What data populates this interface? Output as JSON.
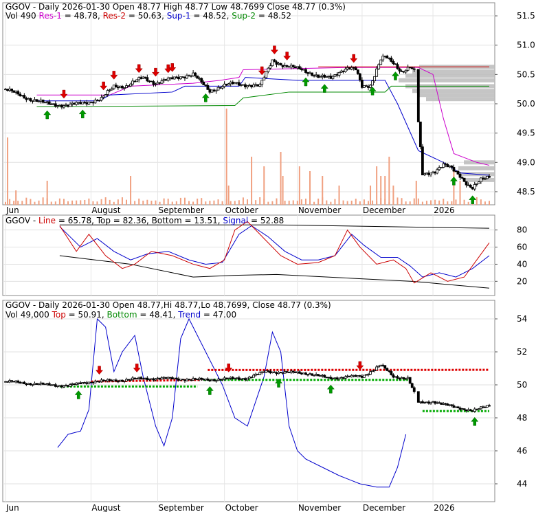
{
  "chart_data": [
    {
      "type": "candlestick",
      "panel": "price",
      "header": {
        "ticker": "GGOV",
        "sep1": " - ",
        "period": "Daily",
        "date": "2026-01-30",
        "open_label": "Open",
        "open": "48.77",
        "high_label": "High",
        "high": "48.77",
        "low_label": "Low",
        "low": "48.7699",
        "close_label": "Close",
        "close": "48.77",
        "change": "(0.3%)"
      },
      "subheader": {
        "vol_label": "Vol",
        "vol": "490",
        "res1_label": "Res-1",
        "res1": "48.78",
        "res2_label": "Res-2",
        "res2": "50.63",
        "sup1_label": "Sup-1",
        "sup1": "48.52",
        "sup2_label": "Sup-2",
        "sup2": "48.52"
      },
      "y_ticks": [
        "51.5",
        "51.0",
        "50.5",
        "50.0",
        "49.5",
        "49.0",
        "48.5"
      ],
      "ylim": [
        48.3,
        51.7
      ],
      "close_path": [
        [
          0,
          50.25
        ],
        [
          10,
          50.1
        ],
        [
          20,
          50.0
        ],
        [
          30,
          49.97
        ],
        [
          38,
          50.02
        ],
        [
          46,
          50.08
        ],
        [
          52,
          50.3
        ],
        [
          58,
          50.3
        ],
        [
          66,
          50.45
        ],
        [
          72,
          50.35
        ],
        [
          82,
          50.45
        ],
        [
          90,
          50.5
        ],
        [
          98,
          50.22
        ],
        [
          104,
          50.3
        ],
        [
          110,
          50.35
        ],
        [
          116,
          50.32
        ],
        [
          122,
          50.3
        ],
        [
          128,
          50.75
        ],
        [
          134,
          50.63
        ],
        [
          142,
          50.6
        ],
        [
          150,
          50.45
        ],
        [
          156,
          50.45
        ],
        [
          160,
          50.55
        ],
        [
          164,
          50.6
        ],
        [
          168,
          50.58
        ],
        [
          171,
          50.3
        ],
        [
          175,
          50.32
        ],
        [
          180,
          50.75
        ],
        [
          182,
          50.8
        ],
        [
          186,
          50.7
        ],
        [
          190,
          50.55
        ],
        [
          194,
          50.62
        ],
        [
          196,
          50.55
        ],
        [
          200,
          48.8
        ],
        [
          206,
          48.85
        ],
        [
          210,
          48.95
        ],
        [
          214,
          48.9
        ],
        [
          218,
          48.78
        ],
        [
          222,
          48.6
        ],
        [
          224,
          48.55
        ],
        [
          228,
          48.7
        ],
        [
          232,
          48.77
        ]
      ],
      "lines": [
        {
          "color": "#cc00cc",
          "path": [
            [
              15,
              50.15
            ],
            [
              50,
              50.15
            ],
            [
              60,
              50.3
            ],
            [
              90,
              50.35
            ],
            [
              103,
              50.4
            ],
            [
              112,
              50.45
            ],
            [
              114,
              50.58
            ],
            [
              165,
              50.62
            ],
            [
              198,
              50.62
            ],
            [
              205,
              50.5
            ],
            [
              210,
              49.75
            ],
            [
              215,
              49.15
            ],
            [
              226,
              49.0
            ],
            [
              232,
              48.95
            ]
          ]
        },
        {
          "color": "#0000cc",
          "path": [
            [
              15,
              50.05
            ],
            [
              45,
              50.05
            ],
            [
              50,
              50.15
            ],
            [
              80,
              50.2
            ],
            [
              86,
              50.3
            ],
            [
              112,
              50.3
            ],
            [
              115,
              50.45
            ],
            [
              140,
              50.4
            ],
            [
              182,
              50.4
            ],
            [
              188,
              50.0
            ],
            [
              193,
              49.6
            ],
            [
              198,
              49.2
            ],
            [
              210,
              49.0
            ],
            [
              218,
              48.82
            ],
            [
              232,
              48.78
            ]
          ]
        },
        {
          "color": "#008800",
          "path": [
            [
              15,
              49.95
            ],
            [
              110,
              49.97
            ],
            [
              114,
              50.1
            ],
            [
              136,
              50.2
            ],
            [
              182,
              50.2
            ],
            [
              185,
              50.3
            ],
            [
              232,
              50.3
            ]
          ]
        }
      ],
      "resistance_level": 50.63,
      "resistance_x": [
        150,
        232
      ],
      "volume_profile_levels": [
        50.63,
        50.55,
        50.48,
        50.4,
        50.3,
        50.22,
        50.15,
        50.08,
        49.0,
        48.9,
        48.8,
        48.7
      ],
      "up_arrows_x": [
        20,
        37,
        96,
        144,
        153,
        176,
        187,
        215,
        224
      ],
      "down_arrows_x": [
        28,
        47,
        52,
        64,
        72,
        78,
        80,
        123,
        129,
        135,
        167
      ],
      "volume_bars": [
        [
          1,
          0.7
        ],
        [
          5,
          0.15
        ],
        [
          20,
          0.25
        ],
        [
          60,
          0.3
        ],
        [
          106,
          1.0
        ],
        [
          107,
          0.2
        ],
        [
          118,
          0.5
        ],
        [
          124,
          0.4
        ],
        [
          132,
          0.55
        ],
        [
          133,
          0.3
        ],
        [
          141,
          0.4
        ],
        [
          146,
          0.35
        ],
        [
          152,
          0.3
        ],
        [
          160,
          0.2
        ],
        [
          175,
          0.2
        ],
        [
          178,
          0.4
        ],
        [
          180,
          0.3
        ],
        [
          182,
          0.3
        ],
        [
          184,
          0.5
        ],
        [
          186,
          0.2
        ],
        [
          197,
          0.25
        ],
        [
          215,
          0.35
        ],
        [
          218,
          0.25
        ]
      ],
      "x_labels": [
        {
          "text": "Jun",
          "i": 0
        },
        {
          "text": "August",
          "i": 41
        },
        {
          "text": "September",
          "i": 73
        },
        {
          "text": "October",
          "i": 105
        },
        {
          "text": "November",
          "i": 140
        },
        {
          "text": "December",
          "i": 171
        },
        {
          "text": "2026",
          "i": 205
        }
      ]
    },
    {
      "type": "line",
      "panel": "oscillator",
      "header": {
        "ticker": "GGOV",
        "sep": " - ",
        "line_label": "Line",
        "line": "65.78",
        "top_label": "Top",
        "top": "82.36",
        "bottom_label": "Bottom",
        "bottom": "13.51",
        "signal_label": "Signal",
        "signal": "52.88"
      },
      "y_ticks": [
        "80",
        "60",
        "40",
        "20"
      ],
      "ylim": [
        5,
        95
      ],
      "top_band": [
        [
          26,
          86
        ],
        [
          60,
          86
        ],
        [
          110,
          86
        ],
        [
          130,
          86
        ],
        [
          232,
          82
        ]
      ],
      "bottom_band": [
        [
          26,
          50
        ],
        [
          60,
          40
        ],
        [
          90,
          25
        ],
        [
          110,
          27
        ],
        [
          130,
          28
        ],
        [
          195,
          20
        ],
        [
          232,
          12
        ]
      ],
      "line_path": [
        [
          26,
          85
        ],
        [
          34,
          55
        ],
        [
          40,
          75
        ],
        [
          48,
          50
        ],
        [
          56,
          35
        ],
        [
          62,
          40
        ],
        [
          70,
          55
        ],
        [
          80,
          50
        ],
        [
          90,
          40
        ],
        [
          98,
          35
        ],
        [
          105,
          45
        ],
        [
          110,
          80
        ],
        [
          116,
          90
        ],
        [
          124,
          70
        ],
        [
          132,
          50
        ],
        [
          140,
          40
        ],
        [
          150,
          42
        ],
        [
          158,
          50
        ],
        [
          164,
          80
        ],
        [
          170,
          60
        ],
        [
          178,
          40
        ],
        [
          186,
          45
        ],
        [
          192,
          35
        ],
        [
          196,
          18
        ],
        [
          204,
          30
        ],
        [
          212,
          20
        ],
        [
          220,
          25
        ],
        [
          226,
          45
        ],
        [
          232,
          65
        ]
      ],
      "signal_path": [
        [
          26,
          84
        ],
        [
          36,
          60
        ],
        [
          44,
          70
        ],
        [
          52,
          55
        ],
        [
          60,
          45
        ],
        [
          68,
          52
        ],
        [
          78,
          55
        ],
        [
          88,
          45
        ],
        [
          96,
          40
        ],
        [
          104,
          42
        ],
        [
          112,
          75
        ],
        [
          118,
          85
        ],
        [
          126,
          72
        ],
        [
          134,
          55
        ],
        [
          142,
          45
        ],
        [
          150,
          45
        ],
        [
          158,
          50
        ],
        [
          166,
          75
        ],
        [
          172,
          62
        ],
        [
          180,
          48
        ],
        [
          188,
          48
        ],
        [
          194,
          38
        ],
        [
          200,
          25
        ],
        [
          208,
          30
        ],
        [
          216,
          25
        ],
        [
          224,
          35
        ],
        [
          232,
          50
        ]
      ]
    },
    {
      "type": "candlestick",
      "panel": "trend",
      "header": {
        "ticker": "GGOV",
        "sep1": " - ",
        "period": "Daily",
        "date": "2026-01-30",
        "open_label": "Open",
        "open": "48.77",
        "high_label": "Hi",
        "high": "48.77",
        "low_label": "Lo",
        "low": "48.7699",
        "close_label": "Close",
        "close": "48.77",
        "change": "(0.3%)"
      },
      "subheader": {
        "vol_label": "Vol",
        "vol": "49,000",
        "top_label": "Top",
        "top": "50.91",
        "bottom_label": "Bottom",
        "bottom": "48.41",
        "trend_label": "Trend",
        "trend": "47.00"
      },
      "y_ticks": [
        "54",
        "52",
        "50",
        "48",
        "46",
        "44"
      ],
      "ylim": [
        43,
        55
      ],
      "close_path": [
        [
          0,
          50.2
        ],
        [
          10,
          50.1
        ],
        [
          20,
          50.0
        ],
        [
          30,
          49.95
        ],
        [
          41,
          50.2
        ],
        [
          52,
          50.25
        ],
        [
          62,
          50.35
        ],
        [
          73,
          50.4
        ],
        [
          84,
          50.35
        ],
        [
          95,
          50.3
        ],
        [
          105,
          50.35
        ],
        [
          115,
          50.4
        ],
        [
          125,
          50.8
        ],
        [
          135,
          50.75
        ],
        [
          145,
          50.7
        ],
        [
          155,
          50.4
        ],
        [
          165,
          50.5
        ],
        [
          171,
          50.5
        ],
        [
          180,
          51.2
        ],
        [
          186,
          50.5
        ],
        [
          193,
          50.4
        ],
        [
          198,
          48.9
        ],
        [
          205,
          49.0
        ],
        [
          210,
          48.8
        ],
        [
          218,
          48.6
        ],
        [
          224,
          48.4
        ],
        [
          232,
          48.77
        ]
      ],
      "trend_path": [
        [
          25,
          46.2
        ],
        [
          30,
          47.0
        ],
        [
          36,
          47.2
        ],
        [
          40,
          48.5
        ],
        [
          44,
          54.0
        ],
        [
          48,
          53.5
        ],
        [
          52,
          50.8
        ],
        [
          56,
          52.0
        ],
        [
          62,
          53.0
        ],
        [
          66,
          50.5
        ],
        [
          72,
          47.5
        ],
        [
          76,
          46.3
        ],
        [
          80,
          48.0
        ],
        [
          84,
          52.8
        ],
        [
          88,
          54.0
        ],
        [
          96,
          52.0
        ],
        [
          104,
          50.0
        ],
        [
          110,
          48.0
        ],
        [
          116,
          47.5
        ],
        [
          124,
          50.5
        ],
        [
          128,
          53.2
        ],
        [
          132,
          52.0
        ],
        [
          136,
          47.5
        ],
        [
          140,
          46.0
        ],
        [
          144,
          45.5
        ],
        [
          152,
          45.0
        ],
        [
          160,
          44.5
        ],
        [
          170,
          44.0
        ],
        [
          178,
          43.8
        ],
        [
          184,
          43.8
        ],
        [
          188,
          45.0
        ],
        [
          192,
          47.0
        ]
      ],
      "top_dotted": [
        [
          41,
          50.2,
          94,
          50.3
        ],
        [
          97,
          50.9,
          232,
          50.91
        ]
      ],
      "bottom_dotted": [
        [
          26,
          49.9,
          92,
          49.9
        ],
        [
          95,
          50.3,
          193,
          50.3
        ],
        [
          200,
          48.41,
          232,
          48.41
        ]
      ],
      "up_arrows_x": [
        35,
        98,
        131,
        156,
        225
      ],
      "down_arrows_x": [
        45,
        63,
        107,
        170
      ],
      "x_labels": [
        {
          "text": "Jun",
          "i": 0
        },
        {
          "text": "August",
          "i": 41
        },
        {
          "text": "September",
          "i": 73
        },
        {
          "text": "October",
          "i": 105
        },
        {
          "text": "November",
          "i": 140
        },
        {
          "text": "December",
          "i": 171
        },
        {
          "text": "2026",
          "i": 205
        }
      ]
    }
  ]
}
